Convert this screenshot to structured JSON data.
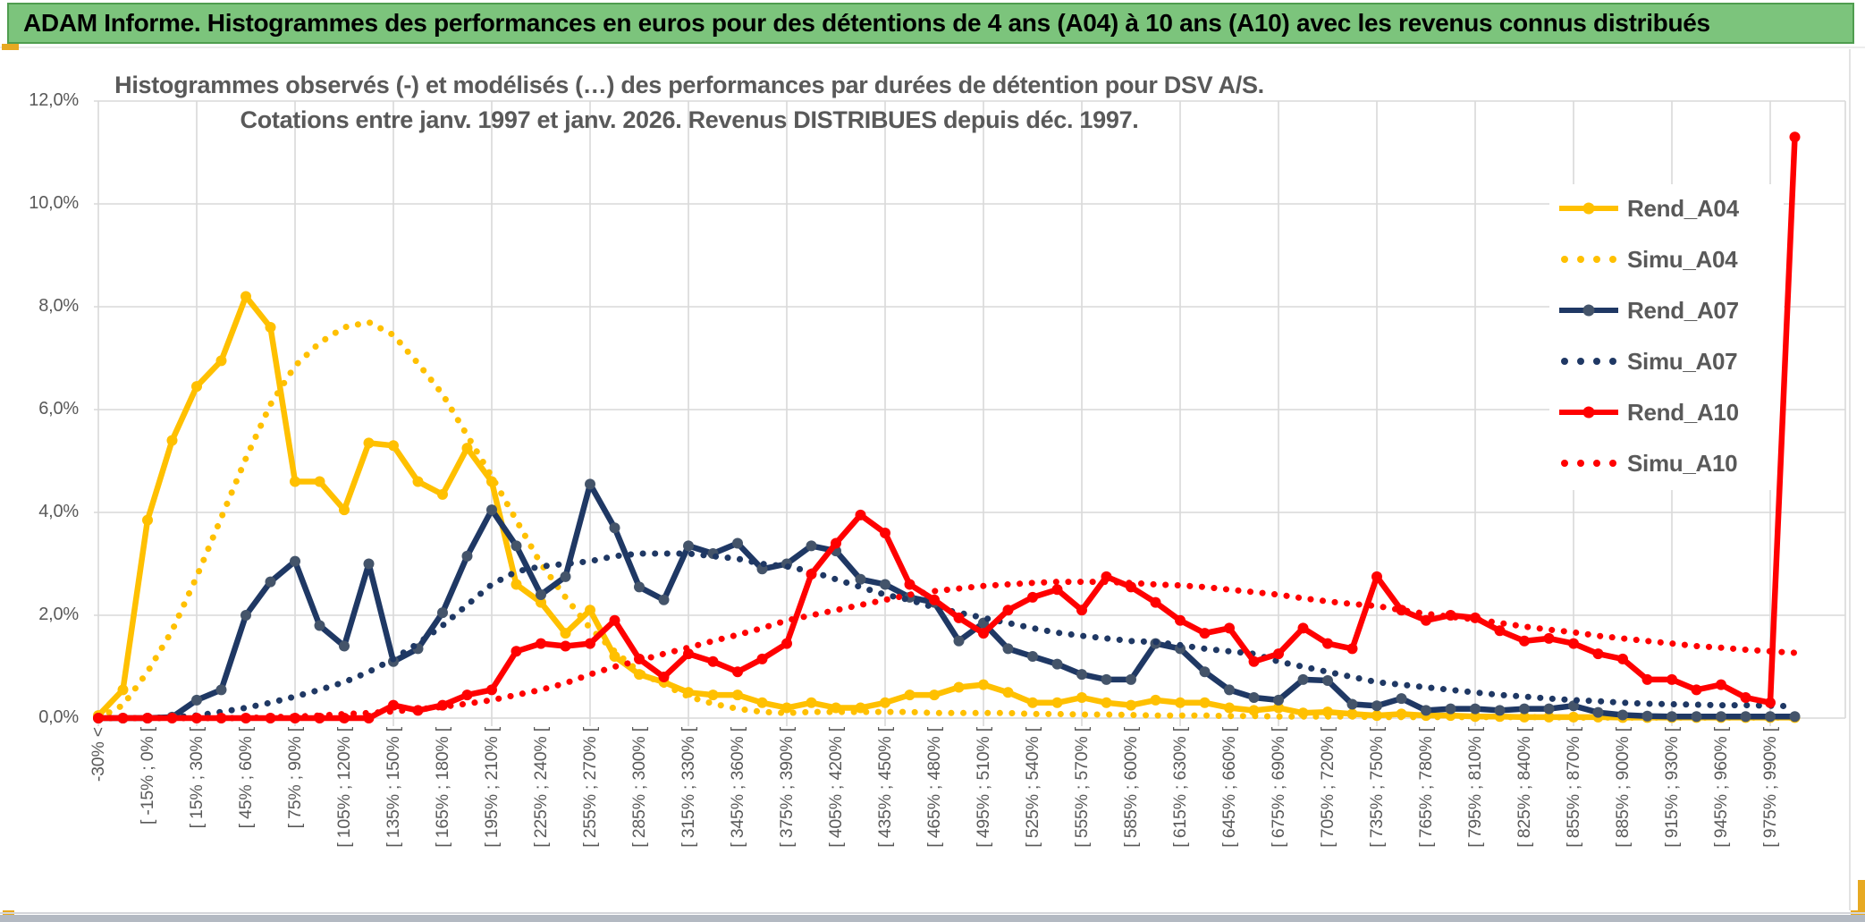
{
  "window": {
    "title": "ADAM Informe. Histogrammes des performances en euros pour des détentions de 4 ans (A04) à 10 ans (A10) avec les revenus connus distribués"
  },
  "chart_data": {
    "type": "line",
    "title_line1": "Histogrammes observés (-) et modélisés (…) des performances par durées de détention pour DSV A/S.",
    "title_line2": "Cotations entre janv. 1997 et janv. 2026.  Revenus DISTRIBUES depuis déc. 1997.",
    "ylabel": "",
    "xlabel": "",
    "ylim": [
      0,
      12
    ],
    "y_ticks": [
      "12,0%",
      "10,0%",
      "8,0%",
      "6,0%",
      "4,0%",
      "2,0%",
      "0,0%"
    ],
    "grid": true,
    "legend_position": "right",
    "colors": {
      "gold": "#FFC000",
      "navy": "#1F3864",
      "navy_marker": "#44546A",
      "red": "#FF0000",
      "grid": "#D9D9D9",
      "axis_text": "#595959",
      "titlebar_green": "#7CC47C",
      "accent_gold": "#E7A922"
    },
    "categories": [
      "-30% <",
      "",
      "[ -15% ; 0% [",
      "",
      "[ 15% ; 30% [",
      "",
      "[ 45% ; 60% [",
      "",
      "[ 75% ; 90% [",
      "",
      "[ 105% ; 120% [",
      "",
      "[ 135% ; 150% [",
      "",
      "[ 165% ; 180% [",
      "",
      "[ 195% ; 210% [",
      "",
      "[ 225% ; 240% [",
      "",
      "[ 255% ; 270% [",
      "",
      "[ 285% ; 300% [",
      "",
      "[ 315% ; 330% [",
      "",
      "[ 345% ; 360% [",
      "",
      "[ 375% ; 390% [",
      "",
      "[ 405% ; 420% [",
      "",
      "[ 435% ; 450% [",
      "",
      "[ 465% ; 480% [",
      "",
      "[ 495% ; 510% [",
      "",
      "[ 525% ; 540% [",
      "",
      "[ 555% ; 570% [",
      "",
      "[ 585% ; 600% [",
      "",
      "[ 615% ; 630% [",
      "",
      "[ 645% ; 660% [",
      "",
      "[ 675% ; 690% [",
      "",
      "[ 705% ; 720% [",
      "",
      "[ 735% ; 750% [",
      "",
      "[ 765% ; 780% [",
      "",
      "[ 795% ; 810% [",
      "",
      "[ 825% ; 840% [",
      "",
      "[ 855% ; 870% [",
      "",
      "[ 885% ; 900% [",
      "",
      "[ 915% ; 930% [",
      "",
      "[ 945% ; 960% [",
      "",
      "[ 975% ; 990% [",
      ""
    ],
    "series": [
      {
        "name": "Rend_A04",
        "style": "solid",
        "color": "#FFC000",
        "marker": "#FFC000",
        "values": [
          0.05,
          0.55,
          3.85,
          5.4,
          6.45,
          6.95,
          8.2,
          7.6,
          4.6,
          4.6,
          4.05,
          5.35,
          5.3,
          4.6,
          4.35,
          5.25,
          4.6,
          2.6,
          2.25,
          1.65,
          2.1,
          1.2,
          0.85,
          0.7,
          0.5,
          0.45,
          0.45,
          0.3,
          0.2,
          0.3,
          0.2,
          0.2,
          0.3,
          0.45,
          0.45,
          0.6,
          0.65,
          0.5,
          0.3,
          0.3,
          0.4,
          0.3,
          0.25,
          0.35,
          0.3,
          0.3,
          0.2,
          0.15,
          0.2,
          0.1,
          0.12,
          0.08,
          0.05,
          0.08,
          0.05,
          0.05,
          0.03,
          0.03,
          0.02,
          0.02,
          0.02,
          0.02,
          0.01,
          0.01,
          0.01,
          0.01,
          0.01,
          0.01,
          0.01,
          0.01
        ]
      },
      {
        "name": "Simu_A04",
        "style": "dotted",
        "color": "#FFC000",
        "values": [
          0,
          0.25,
          0.9,
          1.7,
          2.75,
          3.9,
          5.05,
          6.1,
          6.85,
          7.3,
          7.6,
          7.7,
          7.45,
          6.9,
          6.3,
          5.5,
          4.7,
          3.85,
          3.0,
          2.35,
          1.75,
          1.3,
          0.9,
          0.65,
          0.42,
          0.28,
          0.18,
          0.12,
          0.1,
          0.12,
          0.12,
          0.12,
          0.12,
          0.12,
          0.1,
          0.1,
          0.1,
          0.1,
          0.08,
          0.08,
          0.07,
          0.07,
          0.06,
          0.05,
          0.05,
          0.05,
          0.04,
          0.04,
          0.03,
          0.03,
          0.03,
          0.03,
          0.02,
          0.02,
          0.02,
          0.02,
          0.02,
          0.02,
          0.02,
          0.02,
          0.01,
          0.01,
          0.01,
          0.01,
          0.01,
          0.01,
          0.01,
          0.01,
          0.01,
          0.01
        ]
      },
      {
        "name": "Rend_A07",
        "style": "solid",
        "color": "#1F3864",
        "marker": "#44546A",
        "values": [
          0,
          0,
          0,
          0.02,
          0.35,
          0.55,
          2.0,
          2.65,
          3.05,
          1.8,
          1.4,
          3.0,
          1.1,
          1.35,
          2.05,
          3.15,
          4.05,
          3.35,
          2.4,
          2.75,
          4.55,
          3.7,
          2.55,
          2.3,
          3.35,
          3.2,
          3.4,
          2.9,
          3.0,
          3.35,
          3.25,
          2.7,
          2.6,
          2.35,
          2.25,
          1.5,
          1.85,
          1.35,
          1.2,
          1.05,
          0.85,
          0.75,
          0.75,
          1.45,
          1.35,
          0.9,
          0.55,
          0.4,
          0.35,
          0.75,
          0.73,
          0.27,
          0.24,
          0.38,
          0.15,
          0.18,
          0.18,
          0.15,
          0.18,
          0.18,
          0.24,
          0.11,
          0.06,
          0.04,
          0.03,
          0.03,
          0.03,
          0.03,
          0.03,
          0.03
        ]
      },
      {
        "name": "Simu_A07",
        "style": "dotted",
        "color": "#1F3864",
        "values": [
          0,
          0,
          0,
          0.02,
          0.05,
          0.12,
          0.2,
          0.3,
          0.42,
          0.55,
          0.7,
          0.9,
          1.15,
          1.45,
          1.8,
          2.2,
          2.6,
          2.85,
          2.95,
          3.0,
          3.05,
          3.15,
          3.2,
          3.2,
          3.2,
          3.15,
          3.1,
          3.0,
          2.95,
          2.85,
          2.7,
          2.55,
          2.4,
          2.3,
          2.15,
          2.05,
          1.95,
          1.85,
          1.75,
          1.66,
          1.6,
          1.55,
          1.5,
          1.48,
          1.42,
          1.35,
          1.3,
          1.25,
          1.1,
          1.0,
          0.9,
          0.8,
          0.7,
          0.65,
          0.6,
          0.55,
          0.5,
          0.45,
          0.42,
          0.38,
          0.35,
          0.33,
          0.3,
          0.28,
          0.27,
          0.26,
          0.25,
          0.25,
          0.24,
          0.23
        ]
      },
      {
        "name": "Rend_A10",
        "style": "solid",
        "color": "#FF0000",
        "marker": "#FF0000",
        "values": [
          0,
          0,
          0,
          0,
          0,
          0,
          0,
          0,
          0,
          0,
          0,
          0,
          0.25,
          0.15,
          0.25,
          0.45,
          0.55,
          1.3,
          1.45,
          1.4,
          1.45,
          1.9,
          1.15,
          0.8,
          1.25,
          1.1,
          0.9,
          1.15,
          1.45,
          2.8,
          3.4,
          3.95,
          3.6,
          2.6,
          2.3,
          1.95,
          1.65,
          2.1,
          2.35,
          2.5,
          2.1,
          2.75,
          2.55,
          2.25,
          1.9,
          1.65,
          1.75,
          1.1,
          1.25,
          1.75,
          1.45,
          1.35,
          2.75,
          2.1,
          1.9,
          2.0,
          1.95,
          1.7,
          1.5,
          1.55,
          1.45,
          1.25,
          1.15,
          0.75,
          0.75,
          0.55,
          0.65,
          0.4,
          0.3,
          11.3
        ]
      },
      {
        "name": "Simu_A10",
        "style": "dotted",
        "color": "#FF0000",
        "values": [
          0,
          0,
          0,
          0,
          0,
          0,
          0,
          0.02,
          0.03,
          0.05,
          0.08,
          0.1,
          0.13,
          0.17,
          0.22,
          0.28,
          0.35,
          0.45,
          0.55,
          0.68,
          0.85,
          1.0,
          1.12,
          1.25,
          1.37,
          1.5,
          1.62,
          1.75,
          1.9,
          2.0,
          2.1,
          2.2,
          2.3,
          2.4,
          2.47,
          2.52,
          2.57,
          2.6,
          2.63,
          2.65,
          2.65,
          2.65,
          2.63,
          2.6,
          2.58,
          2.55,
          2.5,
          2.45,
          2.4,
          2.33,
          2.27,
          2.22,
          2.18,
          2.1,
          2.03,
          1.97,
          1.92,
          1.85,
          1.78,
          1.72,
          1.67,
          1.6,
          1.55,
          1.5,
          1.45,
          1.4,
          1.37,
          1.33,
          1.3,
          1.27
        ]
      }
    ]
  }
}
